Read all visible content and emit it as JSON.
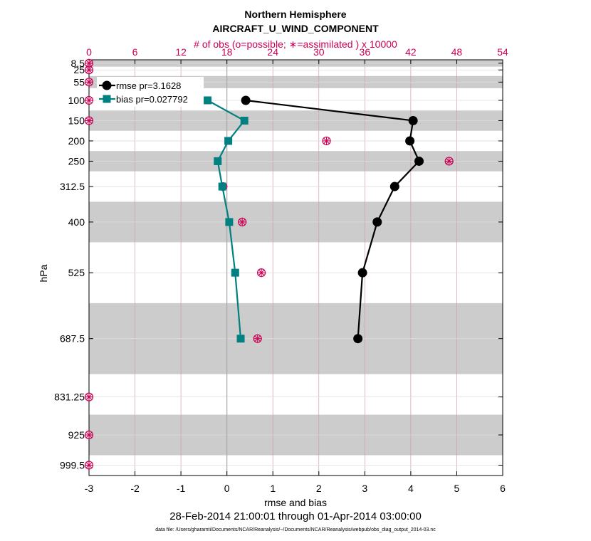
{
  "chart_data": {
    "type": "line",
    "title": "Northern Hemisphere",
    "subtitle": "AIRCRAFT_U_WIND_COMPONENT",
    "top_axis_label": "# of obs (o=possible; ∗=assimilated ) x 10000",
    "xlabel": "rmse and bias",
    "ylabel": "hPa",
    "date_range": "28-Feb-2014 21:00:01 through 01-Apr-2014 03:00:00",
    "data_file": "data file: /Users/gharamti/Documents/NCAR/Reanalysis/~/Documents/NCAR/Reanalysis/webpub/obs_diag_output_2014-03.nc",
    "xlim": [
      -3,
      6
    ],
    "x_ticks": [
      -3,
      -2,
      -1,
      0,
      1,
      2,
      3,
      4,
      5,
      6
    ],
    "top_xlim": [
      0,
      54
    ],
    "top_ticks": [
      0,
      6,
      12,
      18,
      24,
      30,
      36,
      42,
      48,
      54
    ],
    "ylim": [
      1025,
      0
    ],
    "levels": [
      8.5,
      25,
      55,
      100,
      150,
      200,
      250,
      312.5,
      400,
      525,
      687.5,
      831.25,
      925,
      999.5
    ],
    "level_labels": [
      "8.5",
      "25",
      "55",
      "100",
      "150",
      "200",
      "250",
      "312.5",
      "400",
      "525",
      "687.5",
      "831.25",
      "925",
      "999.5"
    ],
    "shaded_bands": [
      [
        0,
        17
      ],
      [
        40,
        70
      ],
      [
        125,
        175
      ],
      [
        225,
        275
      ],
      [
        350,
        450
      ],
      [
        600,
        775
      ],
      [
        875,
        975
      ]
    ],
    "series": [
      {
        "name": "rmse pr=3.1628",
        "legend": "rmse pr=3.1628",
        "color": "#000000",
        "marker": "circle",
        "levels": [
          100,
          150,
          200,
          250,
          312.5,
          400,
          525,
          687.5
        ],
        "values": [
          0.41,
          4.05,
          3.98,
          4.18,
          3.65,
          3.27,
          2.95,
          2.85
        ]
      },
      {
        "name": "bias pr=0.027792",
        "legend": "bias pr=0.027792",
        "color": "#008080",
        "marker": "square",
        "levels": [
          100,
          150,
          200,
          250,
          312.5,
          400,
          525,
          687.5
        ],
        "values": [
          -0.42,
          0.38,
          0.03,
          -0.2,
          -0.1,
          0.05,
          0.18,
          0.3
        ]
      }
    ],
    "obs_count": {
      "levels": [
        8.5,
        25,
        55,
        100,
        150,
        200,
        250,
        312.5,
        400,
        525,
        687.5,
        831.25,
        925,
        999.5
      ],
      "possible": [
        0,
        0,
        0,
        0,
        0,
        31,
        47,
        17.5,
        20,
        22.5,
        22,
        0,
        0,
        0
      ],
      "assimilated": [
        0,
        0,
        0,
        0,
        0,
        31,
        47,
        17.5,
        20,
        22.5,
        22,
        0,
        0,
        0
      ]
    },
    "colors": {
      "obs": "#cc0055",
      "grid": "#c7a0aa",
      "band": "#cccccc",
      "zero_line": "#aaaaaa"
    }
  }
}
